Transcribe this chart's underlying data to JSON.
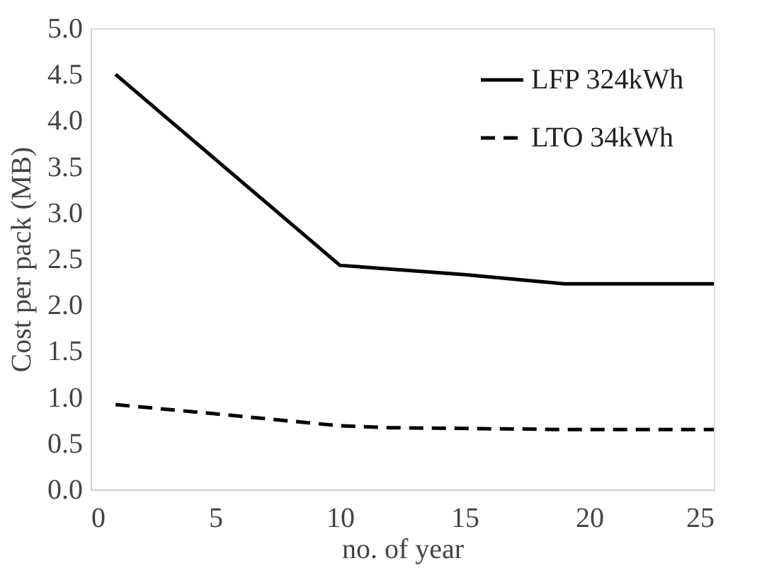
{
  "chart_data": {
    "type": "line",
    "xlabel": "no. of year",
    "ylabel": "Cost per pack (MB)",
    "xlim": [
      0,
      25
    ],
    "xticks": [
      0,
      5,
      10,
      15,
      20,
      25
    ],
    "ylim": [
      0,
      5.0
    ],
    "yticks": [
      {
        "value": 0,
        "label": "0.0"
      },
      {
        "value": 0.5,
        "label": "0.5"
      },
      {
        "value": 1,
        "label": "1.0"
      },
      {
        "value": 1.5,
        "label": "1.5"
      },
      {
        "value": 2,
        "label": "2.0"
      },
      {
        "value": 2.5,
        "label": "2.5"
      },
      {
        "value": 3,
        "label": "3.0"
      },
      {
        "value": 3.5,
        "label": "3.5"
      },
      {
        "value": 4,
        "label": "4.0"
      },
      {
        "value": 4.5,
        "label": "4.5"
      },
      {
        "value": 5,
        "label": "5.0"
      }
    ],
    "grid": false,
    "legend": "top right",
    "marker": "none",
    "series": [
      {
        "name": "LFP 324kWh",
        "color": "#000000",
        "line_style": "solid",
        "x": [
          1,
          10,
          15,
          19,
          25
        ],
        "values": [
          4.5,
          2.43,
          2.33,
          2.23,
          2.23
        ]
      },
      {
        "name": "LTO 34kWh",
        "color": "#000000",
        "line_style": "dashed",
        "x": [
          1,
          5,
          10,
          12,
          19,
          25
        ],
        "values": [
          0.92,
          0.82,
          0.69,
          0.67,
          0.65,
          0.65
        ]
      }
    ]
  }
}
